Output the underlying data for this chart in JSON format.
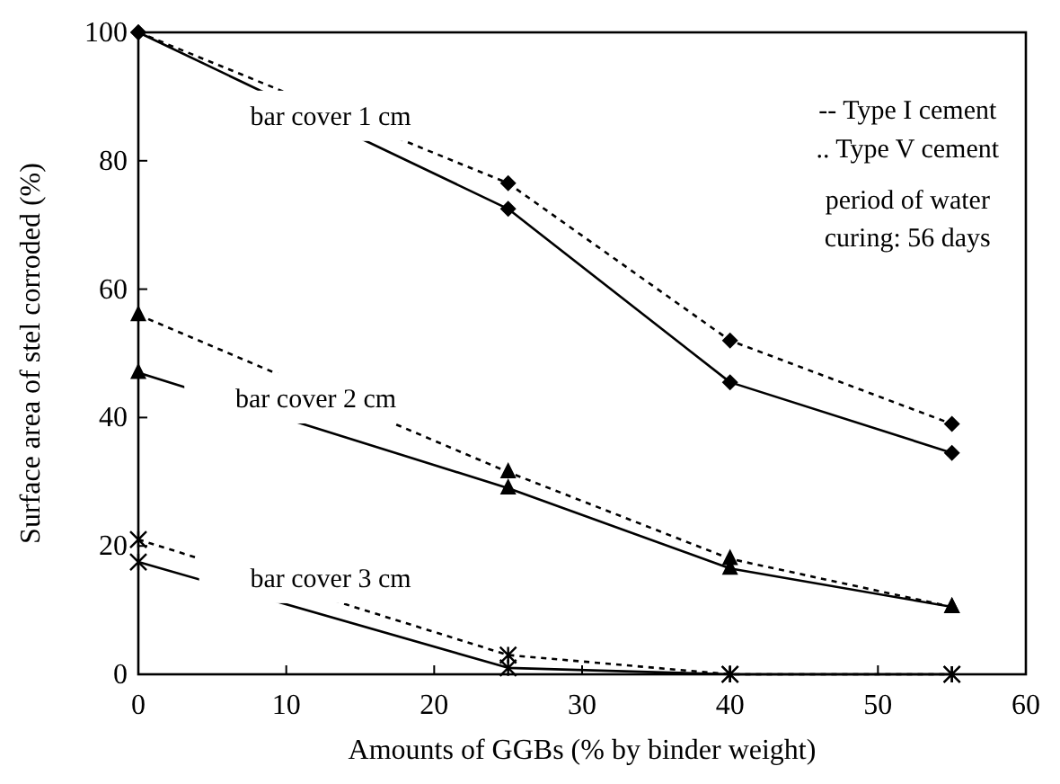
{
  "chart_data": {
    "type": "line",
    "xlabel": "Amounts of GGBs (% by binder weight)",
    "ylabel": "Surface area of stel corroded (%)",
    "x": [
      0,
      25,
      40,
      55
    ],
    "series": [
      {
        "color": "#000000",
        "values": [
          100,
          72.5,
          45.5,
          34.5
        ],
        "marker": "diamond",
        "line_style": "solid"
      },
      {
        "color": "#000000",
        "values": [
          100,
          76.5,
          52,
          39
        ],
        "marker": "diamond",
        "line_style": "dotted"
      },
      {
        "color": "#000000",
        "values": [
          47,
          29,
          16.5,
          10.5
        ],
        "marker": "triangle",
        "line_style": "solid"
      },
      {
        "color": "#000000",
        "values": [
          56,
          31.5,
          18,
          10.5
        ],
        "marker": "triangle",
        "line_style": "dotted"
      },
      {
        "color": "#000000",
        "values": [
          17.5,
          1,
          0,
          0
        ],
        "marker": "cross",
        "line_style": "solid"
      },
      {
        "color": "#000000",
        "values": [
          21,
          3,
          0,
          0
        ],
        "marker": "cross",
        "line_style": "dotted"
      }
    ],
    "xlim": [
      0,
      60
    ],
    "xticks": [
      0,
      10,
      20,
      30,
      40,
      50,
      60
    ],
    "ylim": [
      0,
      100
    ],
    "yticks": [
      0,
      20,
      40,
      60,
      80,
      100
    ],
    "annotations": [
      "bar cover 1 cm",
      "bar cover 2 cm",
      "bar cover 3 cm",
      "-- Type I cement",
      ".. Type V cement",
      "period of water",
      "curing: 56 days"
    ]
  }
}
